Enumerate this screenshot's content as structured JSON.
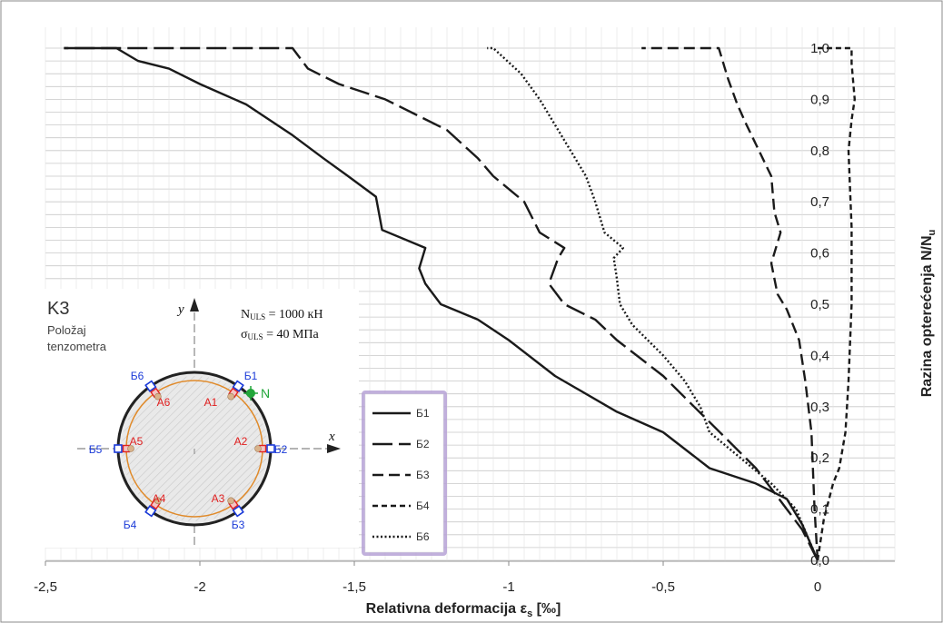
{
  "chart_data": {
    "type": "line",
    "xlabel": "Relativna deformacija ε",
    "xlabel_sub": "s",
    "xlabel_unit": " [‰]",
    "ylabel": "Razina opterećenja  N/N",
    "ylabel_sub": "u",
    "xlim": [
      -2.5,
      0.25
    ],
    "ylim": [
      0,
      1.05
    ],
    "x_ticks": [
      "-2,5",
      "-2",
      "-1,5",
      "-1",
      "-0,5",
      "0"
    ],
    "x_tick_values": [
      -2.5,
      -2,
      -1.5,
      -1,
      -0.5,
      0
    ],
    "y_ticks": [
      "0,0",
      "0,1",
      "0,2",
      "0,3",
      "0,4",
      "0,5",
      "0,6",
      "0,7",
      "0,8",
      "0,9",
      "1,0"
    ],
    "y_tick_values": [
      0,
      0.1,
      0.2,
      0.3,
      0.4,
      0.5,
      0.6,
      0.7,
      0.8,
      0.9,
      1.0
    ],
    "grid": "horizontal",
    "legend_position": "lower-center",
    "series": [
      {
        "name": "Б1",
        "style": "solid",
        "points": [
          [
            0,
            0
          ],
          [
            -0.05,
            0.07
          ],
          [
            -0.1,
            0.12
          ],
          [
            -0.2,
            0.15
          ],
          [
            -0.35,
            0.18
          ],
          [
            -0.5,
            0.25
          ],
          [
            -0.65,
            0.29
          ],
          [
            -0.85,
            0.36
          ],
          [
            -1.0,
            0.43
          ],
          [
            -1.1,
            0.47
          ],
          [
            -1.22,
            0.5
          ],
          [
            -1.27,
            0.54
          ],
          [
            -1.29,
            0.57
          ],
          [
            -1.27,
            0.61
          ],
          [
            -1.41,
            0.645
          ],
          [
            -1.43,
            0.71
          ],
          [
            -1.52,
            0.75
          ],
          [
            -1.6,
            0.785
          ],
          [
            -1.7,
            0.83
          ],
          [
            -1.85,
            0.89
          ],
          [
            -2.0,
            0.93
          ],
          [
            -2.1,
            0.96
          ],
          [
            -2.2,
            0.975
          ],
          [
            -2.27,
            1.0
          ],
          [
            -2.44,
            1.0
          ]
        ]
      },
      {
        "name": "Б2",
        "style": "long-dash",
        "points": [
          [
            0,
            0
          ],
          [
            -0.05,
            0.06
          ],
          [
            -0.1,
            0.1
          ],
          [
            -0.2,
            0.18
          ],
          [
            -0.3,
            0.24
          ],
          [
            -0.4,
            0.3
          ],
          [
            -0.5,
            0.36
          ],
          [
            -0.65,
            0.43
          ],
          [
            -0.72,
            0.47
          ],
          [
            -0.82,
            0.5
          ],
          [
            -0.87,
            0.54
          ],
          [
            -0.84,
            0.59
          ],
          [
            -0.82,
            0.61
          ],
          [
            -0.9,
            0.64
          ],
          [
            -0.95,
            0.7
          ],
          [
            -1.05,
            0.75
          ],
          [
            -1.1,
            0.785
          ],
          [
            -1.2,
            0.84
          ],
          [
            -1.4,
            0.9
          ],
          [
            -1.55,
            0.93
          ],
          [
            -1.65,
            0.96
          ],
          [
            -1.7,
            1.0
          ],
          [
            -2.44,
            1.0
          ]
        ]
      },
      {
        "name": "Б3",
        "style": "short-dash",
        "points": [
          [
            0,
            0
          ],
          [
            -0.01,
            0.1
          ],
          [
            -0.02,
            0.25
          ],
          [
            -0.04,
            0.35
          ],
          [
            -0.06,
            0.43
          ],
          [
            -0.1,
            0.49
          ],
          [
            -0.13,
            0.52
          ],
          [
            -0.15,
            0.58
          ],
          [
            -0.12,
            0.64
          ],
          [
            -0.14,
            0.68
          ],
          [
            -0.15,
            0.75
          ],
          [
            -0.19,
            0.8
          ],
          [
            -0.23,
            0.85
          ],
          [
            -0.26,
            0.89
          ],
          [
            -0.29,
            0.94
          ],
          [
            -0.32,
            1.0
          ],
          [
            -0.57,
            1.0
          ]
        ]
      },
      {
        "name": "Б4",
        "style": "dash",
        "points": [
          [
            0,
            0
          ],
          [
            0.02,
            0.08
          ],
          [
            0.05,
            0.15
          ],
          [
            0.07,
            0.18
          ],
          [
            0.09,
            0.25
          ],
          [
            0.1,
            0.35
          ],
          [
            0.11,
            0.5
          ],
          [
            0.11,
            0.65
          ],
          [
            0.1,
            0.8
          ],
          [
            0.11,
            0.86
          ],
          [
            0.12,
            0.9
          ],
          [
            0.11,
            0.97
          ],
          [
            0.11,
            1.0
          ],
          [
            0.0,
            1.0
          ]
        ]
      },
      {
        "name": "Б6",
        "style": "dotted",
        "points": [
          [
            0,
            0
          ],
          [
            -0.07,
            0.1
          ],
          [
            -0.15,
            0.15
          ],
          [
            -0.25,
            0.2
          ],
          [
            -0.35,
            0.25
          ],
          [
            -0.38,
            0.3
          ],
          [
            -0.43,
            0.35
          ],
          [
            -0.5,
            0.4
          ],
          [
            -0.6,
            0.46
          ],
          [
            -0.64,
            0.5
          ],
          [
            -0.65,
            0.55
          ],
          [
            -0.66,
            0.59
          ],
          [
            -0.63,
            0.61
          ],
          [
            -0.69,
            0.64
          ],
          [
            -0.72,
            0.7
          ],
          [
            -0.75,
            0.75
          ],
          [
            -0.8,
            0.8
          ],
          [
            -0.85,
            0.85
          ],
          [
            -0.9,
            0.9
          ],
          [
            -0.96,
            0.95
          ],
          [
            -1.05,
            1.0
          ],
          [
            -1.07,
            1.0
          ]
        ]
      }
    ]
  },
  "inset": {
    "title": "K3",
    "subtitle_line1": "Položaj",
    "subtitle_line2": "tenzometra",
    "n_label": "N",
    "n_sub": "ULS",
    "n_value": " = 1000 кН",
    "sigma_label": "σ",
    "sigma_sub": "ULS",
    "sigma_value": " = 40 МПа",
    "y_axis": "y",
    "x_axis": "x",
    "load_point": "N",
    "gauges_B": [
      "Б1",
      "Б2",
      "Б3",
      "Б4",
      "Б5",
      "Б6"
    ],
    "gauges_A": [
      "A1",
      "A2",
      "A3",
      "A4",
      "A5",
      "A6"
    ],
    "colors": {
      "b_labels": "#1a3ad8",
      "a_labels": "#e02020",
      "rebar_ring": "#e08a2a",
      "load_point": "#22a63a"
    }
  },
  "colors": {
    "series": "#1a1a1a",
    "grid": "#c8c8c8",
    "legend_border": "#b7a3d6",
    "frame": "#8a8a8a"
  }
}
